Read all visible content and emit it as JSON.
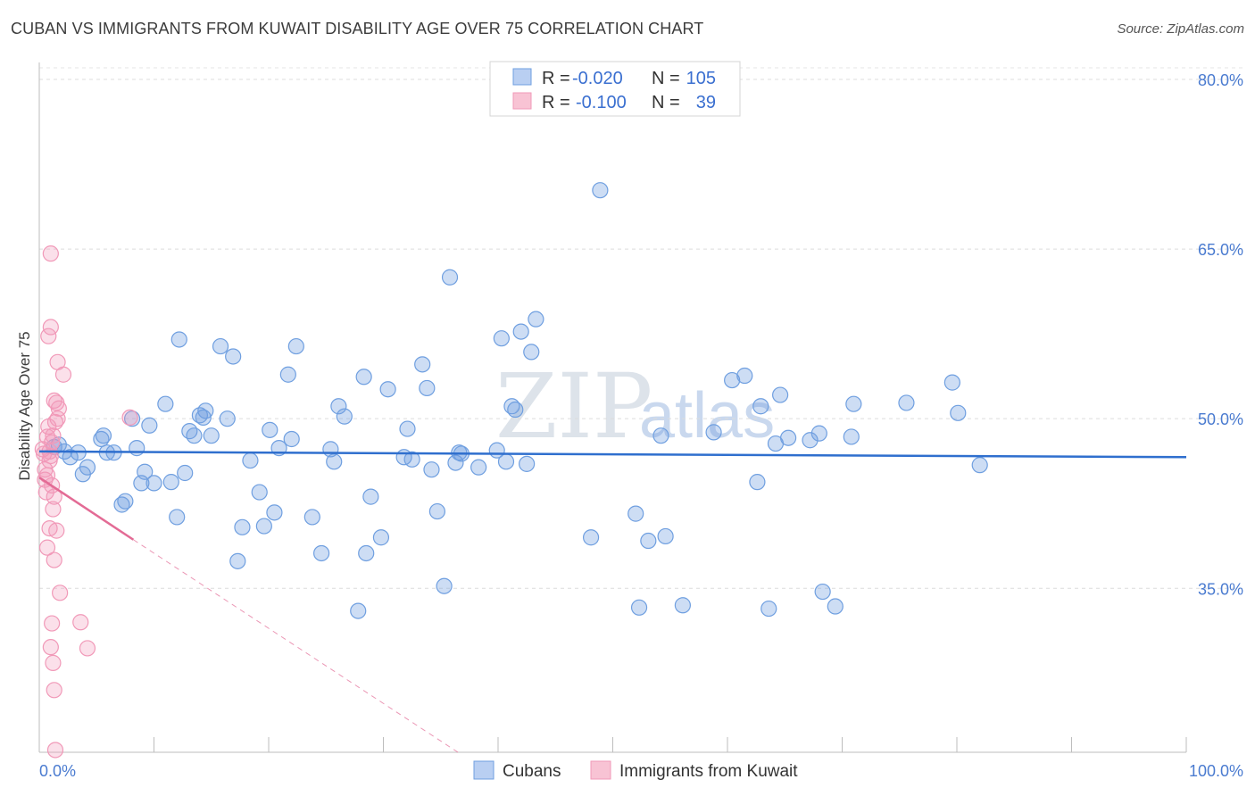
{
  "header": {
    "title": "CUBAN VS IMMIGRANTS FROM KUWAIT DISABILITY AGE OVER 75 CORRELATION CHART",
    "source": "Source: ZipAtlas.com"
  },
  "watermark": {
    "zip": "ZIP",
    "atlas": "atlas"
  },
  "legend": {
    "rows": [
      {
        "r_label": "R =",
        "r_value": "-0.020",
        "n_label": "N =",
        "n_value": "105"
      },
      {
        "r_label": "R =",
        "r_value": "-0.100",
        "n_label": "N =",
        "n_value": "39"
      }
    ]
  },
  "chart_data": {
    "type": "scatter",
    "title": "CUBAN VS IMMIGRANTS FROM KUWAIT DISABILITY AGE OVER 75 CORRELATION CHART",
    "xlabel": "",
    "ylabel": "Disability Age Over 75",
    "xlim": [
      0,
      100
    ],
    "ylim": [
      20.5,
      81.5
    ],
    "x_tick_labels": [
      "0.0%",
      "100.0%"
    ],
    "y_ticks": [
      35,
      50,
      65,
      80
    ],
    "y_tick_labels": [
      "35.0%",
      "50.0%",
      "65.0%",
      "80.0%"
    ],
    "grid": true,
    "legend_placement": "top-center",
    "colors": {
      "cubans": "#6f9fe0",
      "kuwait": "#f199b8",
      "cubans_line": "#2f6fce",
      "kuwait_line": "#e36b95"
    },
    "series": [
      {
        "name": "Cubans",
        "r": -0.02,
        "n": 105,
        "trend": {
          "x": [
            0,
            100
          ],
          "y": [
            47.1,
            46.6
          ]
        },
        "points": [
          [
            1.3,
            47.5
          ],
          [
            1.7,
            47.7
          ],
          [
            2.2,
            47.1
          ],
          [
            2.7,
            46.6
          ],
          [
            3.4,
            47.0
          ],
          [
            3.8,
            45.1
          ],
          [
            4.2,
            45.7
          ],
          [
            5.4,
            48.2
          ],
          [
            5.6,
            48.5
          ],
          [
            5.9,
            47.0
          ],
          [
            6.5,
            47.0
          ],
          [
            7.2,
            42.4
          ],
          [
            7.5,
            42.7
          ],
          [
            8.1,
            50.0
          ],
          [
            8.5,
            47.4
          ],
          [
            8.9,
            44.3
          ],
          [
            9.2,
            45.3
          ],
          [
            9.6,
            49.4
          ],
          [
            10.0,
            44.3
          ],
          [
            11.0,
            51.3
          ],
          [
            11.5,
            44.4
          ],
          [
            12.0,
            41.3
          ],
          [
            12.2,
            57.0
          ],
          [
            12.7,
            45.2
          ],
          [
            13.1,
            48.9
          ],
          [
            13.5,
            48.5
          ],
          [
            14.0,
            50.3
          ],
          [
            14.5,
            50.7
          ],
          [
            15.0,
            48.5
          ],
          [
            15.8,
            56.4
          ],
          [
            16.4,
            50.0
          ],
          [
            16.9,
            55.5
          ],
          [
            17.3,
            37.4
          ],
          [
            17.7,
            40.4
          ],
          [
            18.4,
            46.3
          ],
          [
            19.2,
            43.5
          ],
          [
            19.6,
            40.5
          ],
          [
            20.1,
            49.0
          ],
          [
            20.5,
            41.7
          ],
          [
            20.9,
            47.4
          ],
          [
            21.7,
            53.9
          ],
          [
            22.0,
            48.2
          ],
          [
            22.4,
            56.4
          ],
          [
            23.8,
            41.3
          ],
          [
            24.6,
            38.1
          ],
          [
            25.4,
            47.3
          ],
          [
            25.7,
            46.2
          ],
          [
            26.1,
            51.1
          ],
          [
            26.6,
            50.2
          ],
          [
            27.8,
            33.0
          ],
          [
            28.3,
            53.7
          ],
          [
            28.5,
            38.1
          ],
          [
            28.9,
            43.1
          ],
          [
            29.8,
            39.5
          ],
          [
            30.4,
            52.6
          ],
          [
            31.8,
            46.6
          ],
          [
            32.1,
            49.1
          ],
          [
            32.5,
            46.4
          ],
          [
            33.4,
            54.8
          ],
          [
            33.8,
            52.7
          ],
          [
            34.2,
            45.5
          ],
          [
            34.7,
            41.8
          ],
          [
            35.3,
            35.2
          ],
          [
            35.8,
            62.5
          ],
          [
            36.3,
            46.1
          ],
          [
            36.6,
            47.0
          ],
          [
            38.3,
            45.7
          ],
          [
            39.9,
            47.2
          ],
          [
            40.3,
            57.1
          ],
          [
            40.7,
            46.2
          ],
          [
            41.2,
            51.1
          ],
          [
            41.5,
            50.8
          ],
          [
            42.0,
            57.7
          ],
          [
            42.5,
            46.0
          ],
          [
            42.9,
            55.9
          ],
          [
            43.3,
            58.8
          ],
          [
            48.1,
            39.5
          ],
          [
            48.9,
            70.2
          ],
          [
            52.0,
            41.6
          ],
          [
            52.3,
            33.3
          ],
          [
            53.1,
            39.2
          ],
          [
            54.2,
            48.5
          ],
          [
            54.6,
            39.6
          ],
          [
            56.1,
            33.5
          ],
          [
            58.8,
            48.8
          ],
          [
            60.4,
            53.4
          ],
          [
            61.5,
            53.8
          ],
          [
            62.6,
            44.4
          ],
          [
            62.9,
            51.1
          ],
          [
            63.6,
            33.2
          ],
          [
            64.2,
            47.8
          ],
          [
            64.6,
            52.1
          ],
          [
            67.2,
            48.1
          ],
          [
            68.0,
            48.7
          ],
          [
            68.3,
            34.7
          ],
          [
            69.4,
            33.4
          ],
          [
            70.8,
            48.4
          ],
          [
            71.0,
            51.3
          ],
          [
            75.6,
            51.4
          ],
          [
            79.6,
            53.2
          ],
          [
            80.1,
            50.5
          ],
          [
            82.0,
            45.9
          ],
          [
            65.3,
            48.3
          ],
          [
            36.8,
            46.9
          ],
          [
            14.3,
            50.1
          ]
        ]
      },
      {
        "name": "Immigrants from Kuwait",
        "r": -0.1,
        "n": 39,
        "trend": {
          "x": [
            0,
            8.2
          ],
          "y": [
            44.8,
            39.3
          ]
        },
        "trend_dashed": {
          "x": [
            8.2,
            36.5
          ],
          "y": [
            39.3,
            20.5
          ]
        },
        "points": [
          [
            0.3,
            47.3
          ],
          [
            0.4,
            46.9
          ],
          [
            0.5,
            45.5
          ],
          [
            0.5,
            44.6
          ],
          [
            0.6,
            43.5
          ],
          [
            0.7,
            48.4
          ],
          [
            0.8,
            49.3
          ],
          [
            0.9,
            47.1
          ],
          [
            1.0,
            46.7
          ],
          [
            1.1,
            44.1
          ],
          [
            1.0,
            64.6
          ],
          [
            1.0,
            58.1
          ],
          [
            0.8,
            57.3
          ],
          [
            1.6,
            55.0
          ],
          [
            2.1,
            53.9
          ],
          [
            1.3,
            51.6
          ],
          [
            1.5,
            51.4
          ],
          [
            1.7,
            50.9
          ],
          [
            1.6,
            50.0
          ],
          [
            1.4,
            49.7
          ],
          [
            1.2,
            48.5
          ],
          [
            1.1,
            47.9
          ],
          [
            0.9,
            46.3
          ],
          [
            0.7,
            45.0
          ],
          [
            1.3,
            43.1
          ],
          [
            1.2,
            42.0
          ],
          [
            0.9,
            40.3
          ],
          [
            1.5,
            40.1
          ],
          [
            0.7,
            38.6
          ],
          [
            1.3,
            37.5
          ],
          [
            1.8,
            34.6
          ],
          [
            1.1,
            31.9
          ],
          [
            3.6,
            32.0
          ],
          [
            1.0,
            29.8
          ],
          [
            4.2,
            29.7
          ],
          [
            1.2,
            28.4
          ],
          [
            1.3,
            26.0
          ],
          [
            1.4,
            20.7
          ],
          [
            7.9,
            50.1
          ]
        ]
      }
    ]
  },
  "bottom_legend": {
    "cubans": "Cubans",
    "kuwait": "Immigrants from Kuwait"
  }
}
